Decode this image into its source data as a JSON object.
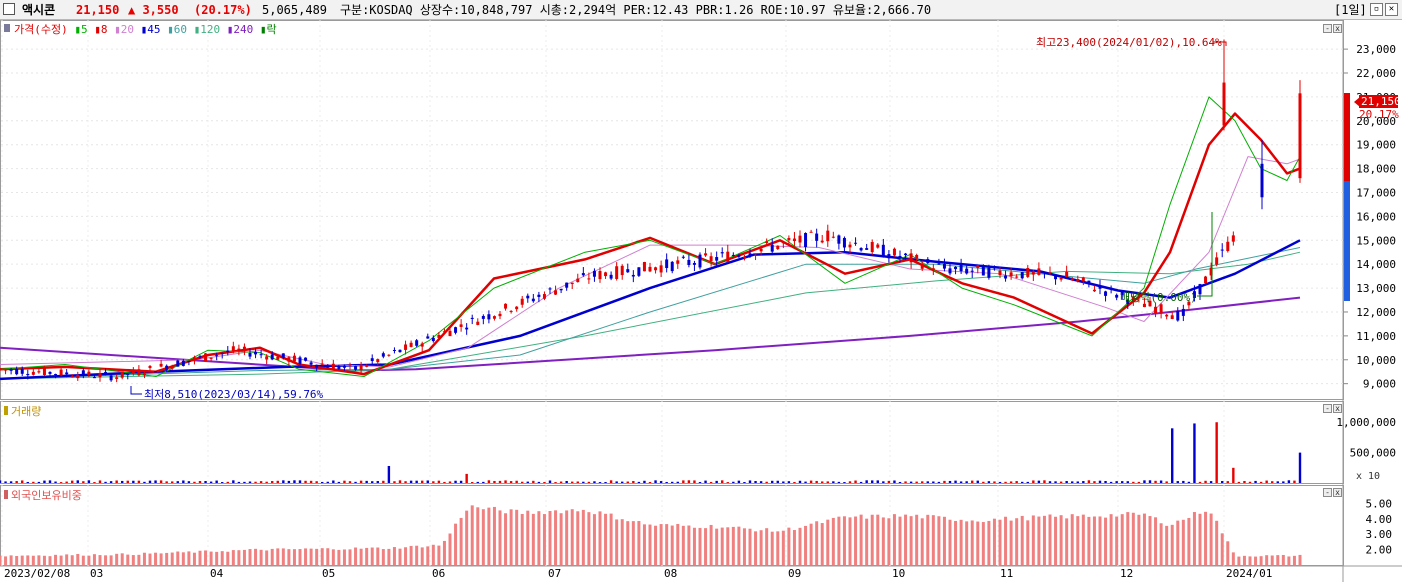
{
  "header": {
    "name": "액시콘",
    "price": "21,150",
    "change": "▲ 3,550",
    "change_pct": "(20.17%)",
    "volume": "5,065,489",
    "info": "구분:KOSDAQ 상장수:10,848,797 시총:2,294억 PER:12.43 PBR:1.26 ROE:10.97 유보율:2,666.70",
    "period_button": "[1일]",
    "colors": {
      "up": "#e60000",
      "down": "#0000d0"
    }
  },
  "chart_data": [
    {
      "type": "candlestick",
      "title": "",
      "legend": [
        {
          "name": "가격(수정)",
          "color": "#e00000"
        },
        {
          "name": "5",
          "color": "#00b000"
        },
        {
          "name": "8",
          "color": "#e00000"
        },
        {
          "name": "20",
          "color": "#d080d0"
        },
        {
          "name": "45",
          "color": "#0000d0"
        },
        {
          "name": "60",
          "color": "#40a0a0"
        },
        {
          "name": "120",
          "color": "#40b080"
        },
        {
          "name": "240",
          "color": "#8020c0"
        },
        {
          "name": "락",
          "color": "#008000"
        }
      ],
      "y_ticks": [
        "23,000",
        "22,000",
        "21,000",
        "20,000",
        "19,000",
        "18,000",
        "17,000",
        "16,000",
        "15,000",
        "14,000",
        "13,000",
        "12,000",
        "11,000",
        "10,000",
        "9,000"
      ],
      "ylim": [
        8400,
        23800
      ],
      "x_ticks": [
        "2023/02/08",
        "03",
        "04",
        "05",
        "06",
        "07",
        "08",
        "09",
        "10",
        "11",
        "12",
        "2024/01"
      ],
      "months": [
        {
          "label": "2023/02/08",
          "mid": 9.6
        },
        {
          "label": "03",
          "mid": 9.3
        },
        {
          "label": "04",
          "mid": 10.4
        },
        {
          "label": "05",
          "mid": 9.6
        },
        {
          "label": "06",
          "mid": 11.6
        },
        {
          "label": "07",
          "mid": 13.5
        },
        {
          "label": "08",
          "mid": 14.2
        },
        {
          "label": "09",
          "mid": 15.2
        },
        {
          "label": "10",
          "mid": 13.8
        },
        {
          "label": "11",
          "mid": 13.5
        },
        {
          "label": "12",
          "mid": 11.8
        },
        {
          "label": "2024/01",
          "mid": 19.5
        }
      ],
      "ma_lines": [
        {
          "name": "240",
          "points": [
            [
              0,
              10.5
            ],
            [
              0.27,
              9.55
            ],
            [
              0.32,
              9.6
            ],
            [
              0.55,
              10.4
            ],
            [
              0.7,
              11.0
            ],
            [
              0.83,
              11.6
            ],
            [
              0.9,
              12.0
            ],
            [
              1.0,
              12.6
            ]
          ]
        },
        {
          "name": "120",
          "points": [
            [
              0,
              9.2
            ],
            [
              0.2,
              9.4
            ],
            [
              0.3,
              9.6
            ],
            [
              0.45,
              11.0
            ],
            [
              0.62,
              12.8
            ],
            [
              0.72,
              13.3
            ],
            [
              0.82,
              13.7
            ],
            [
              0.9,
              13.6
            ],
            [
              0.96,
              14.0
            ],
            [
              1.0,
              14.5
            ]
          ]
        },
        {
          "name": "60",
          "points": [
            [
              0,
              9.2
            ],
            [
              0.2,
              9.55
            ],
            [
              0.3,
              9.6
            ],
            [
              0.4,
              10.2
            ],
            [
              0.5,
              12.0
            ],
            [
              0.62,
              14.0
            ],
            [
              0.72,
              14.0
            ],
            [
              0.82,
              13.5
            ],
            [
              0.88,
              13.2
            ],
            [
              0.92,
              13.8
            ],
            [
              1.0,
              14.7
            ]
          ]
        },
        {
          "name": "45",
          "points": [
            [
              0,
              9.2
            ],
            [
              0.12,
              9.5
            ],
            [
              0.22,
              9.7
            ],
            [
              0.3,
              9.8
            ],
            [
              0.4,
              11.0
            ],
            [
              0.5,
              13.0
            ],
            [
              0.58,
              14.4
            ],
            [
              0.65,
              14.5
            ],
            [
              0.72,
              14.1
            ],
            [
              0.8,
              13.7
            ],
            [
              0.86,
              12.9
            ],
            [
              0.9,
              12.6
            ],
            [
              0.95,
              13.6
            ],
            [
              1.0,
              15.0
            ]
          ]
        },
        {
          "name": "20",
          "points": [
            [
              0,
              9.8
            ],
            [
              0.15,
              10.0
            ],
            [
              0.2,
              10.4
            ],
            [
              0.25,
              9.8
            ],
            [
              0.3,
              9.7
            ],
            [
              0.36,
              10.5
            ],
            [
              0.43,
              13.0
            ],
            [
              0.5,
              14.8
            ],
            [
              0.57,
              14.8
            ],
            [
              0.63,
              14.7
            ],
            [
              0.7,
              13.8
            ],
            [
              0.77,
              13.6
            ],
            [
              0.85,
              12.2
            ],
            [
              0.88,
              11.6
            ],
            [
              0.93,
              14.5
            ],
            [
              0.96,
              18.5
            ],
            [
              0.99,
              18.2
            ],
            [
              1.0,
              18.4
            ]
          ]
        },
        {
          "name": "8",
          "points": [
            [
              0,
              9.6
            ],
            [
              0.05,
              9.7
            ],
            [
              0.12,
              9.5
            ],
            [
              0.16,
              10.2
            ],
            [
              0.2,
              10.5
            ],
            [
              0.23,
              9.8
            ],
            [
              0.28,
              9.4
            ],
            [
              0.33,
              10.4
            ],
            [
              0.38,
              13.4
            ],
            [
              0.45,
              14.2
            ],
            [
              0.5,
              15.1
            ],
            [
              0.55,
              14.0
            ],
            [
              0.6,
              15.0
            ],
            [
              0.65,
              13.6
            ],
            [
              0.7,
              14.2
            ],
            [
              0.74,
              13.2
            ],
            [
              0.78,
              12.6
            ],
            [
              0.84,
              11.1
            ],
            [
              0.88,
              12.8
            ],
            [
              0.9,
              14.5
            ],
            [
              0.93,
              19.0
            ],
            [
              0.95,
              20.3
            ],
            [
              0.97,
              19.2
            ],
            [
              0.99,
              17.8
            ],
            [
              1.0,
              18.0
            ]
          ]
        },
        {
          "name": "5",
          "points": [
            [
              0,
              9.6
            ],
            [
              0.05,
              9.8
            ],
            [
              0.12,
              9.3
            ],
            [
              0.16,
              10.4
            ],
            [
              0.2,
              10.3
            ],
            [
              0.23,
              9.6
            ],
            [
              0.28,
              9.3
            ],
            [
              0.33,
              10.8
            ],
            [
              0.38,
              13.0
            ],
            [
              0.45,
              14.5
            ],
            [
              0.5,
              15.0
            ],
            [
              0.55,
              14.0
            ],
            [
              0.6,
              15.2
            ],
            [
              0.65,
              13.2
            ],
            [
              0.7,
              14.4
            ],
            [
              0.74,
              13.0
            ],
            [
              0.78,
              12.3
            ],
            [
              0.84,
              11.0
            ],
            [
              0.88,
              13.0
            ],
            [
              0.9,
              16.5
            ],
            [
              0.93,
              21.0
            ],
            [
              0.95,
              20.0
            ],
            [
              0.97,
              18.0
            ],
            [
              0.99,
              17.5
            ],
            [
              1.0,
              18.5
            ]
          ]
        }
      ],
      "candles": [
        {
          "d": "2024-01-02",
          "o": 19800,
          "h": 23400,
          "l": 19600,
          "c": 21600
        },
        {
          "d": "2024-01-12",
          "o": 18200,
          "h": 19200,
          "l": 16300,
          "c": 16800
        },
        {
          "d": "2024-01-16",
          "o": 17600,
          "h": 21700,
          "l": 17400,
          "c": 21150
        }
      ],
      "annotations": {
        "high": "최고23,400(2024/01/02),10.64%",
        "low": "최저8,510(2023/03/14),59.76%",
        "dividend": "배당락(0.00%)"
      },
      "current": {
        "price": "21,150",
        "pct": "20.17%"
      }
    },
    {
      "type": "bar",
      "title": "거래량",
      "y_ticks": [
        "1,000,000",
        "500,000"
      ],
      "y_unit": "x 10"
    },
    {
      "type": "bar",
      "title": "외국인보유비중",
      "y_ticks": [
        "5.00",
        "4.00",
        "3.00",
        "2.00"
      ],
      "ylim": [
        1.0,
        6.0
      ]
    }
  ]
}
